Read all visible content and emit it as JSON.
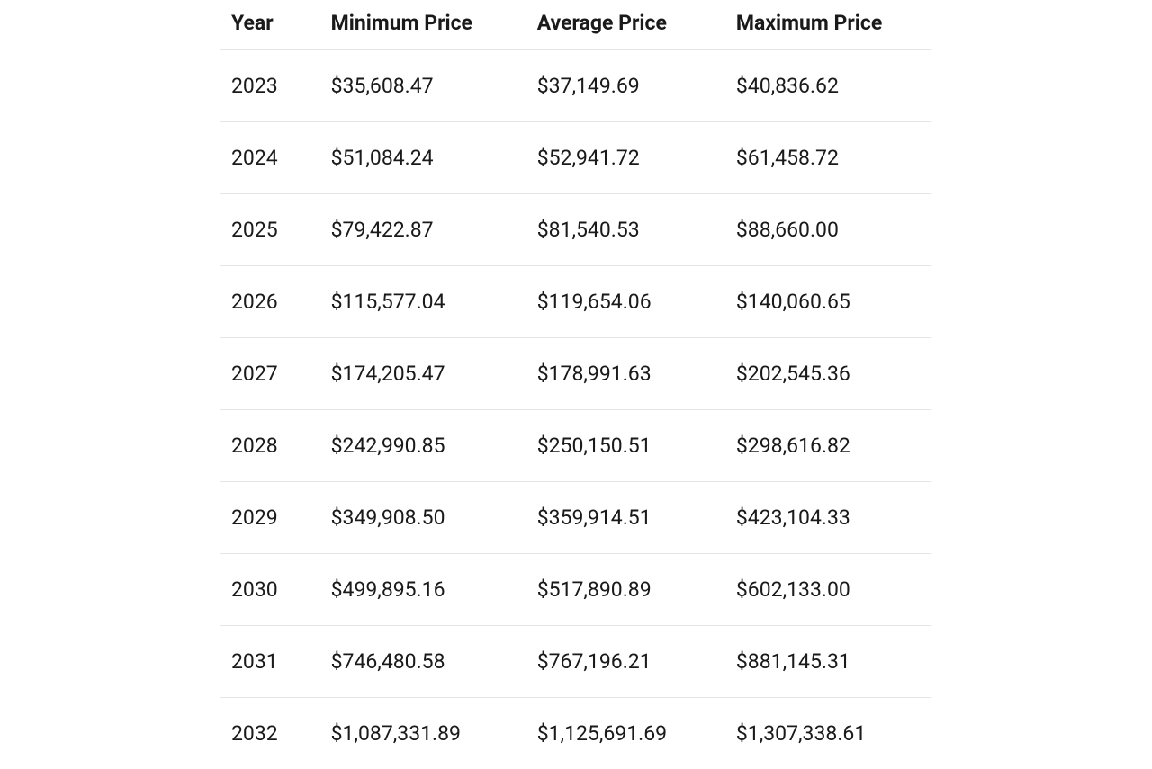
{
  "table": {
    "type": "table",
    "columns": [
      "Year",
      "Minimum Price",
      "Average Price",
      "Maximum Price"
    ],
    "column_widths_pct": [
      14,
      29,
      28,
      29
    ],
    "rows": [
      [
        "2023",
        "$35,608.47",
        "$37,149.69",
        "$40,836.62"
      ],
      [
        "2024",
        "$51,084.24",
        "$52,941.72",
        "$61,458.72"
      ],
      [
        "2025",
        "$79,422.87",
        "$81,540.53",
        "$88,660.00"
      ],
      [
        "2026",
        "$115,577.04",
        "$119,654.06",
        "$140,060.65"
      ],
      [
        "2027",
        "$174,205.47",
        "$178,991.63",
        "$202,545.36"
      ],
      [
        "2028",
        "$242,990.85",
        "$250,150.51",
        "$298,616.82"
      ],
      [
        "2029",
        "$349,908.50",
        "$359,914.51",
        "$423,104.33"
      ],
      [
        "2030",
        "$499,895.16",
        "$517,890.89",
        "$602,133.00"
      ],
      [
        "2031",
        "$746,480.58",
        "$767,196.21",
        "$881,145.31"
      ],
      [
        "2032",
        "$1,087,331.89",
        "$1,125,691.69",
        "$1,307,338.61"
      ]
    ],
    "styling": {
      "header_fontsize": 23,
      "cell_fontsize": 23,
      "header_fontweight": 700,
      "cell_fontweight": 400,
      "text_color": "#1a1a1a",
      "background_color": "#ffffff",
      "border_color": "#e5e5e5",
      "cell_padding_vertical": 26,
      "cell_padding_horizontal": 12,
      "alignment": "left"
    }
  }
}
